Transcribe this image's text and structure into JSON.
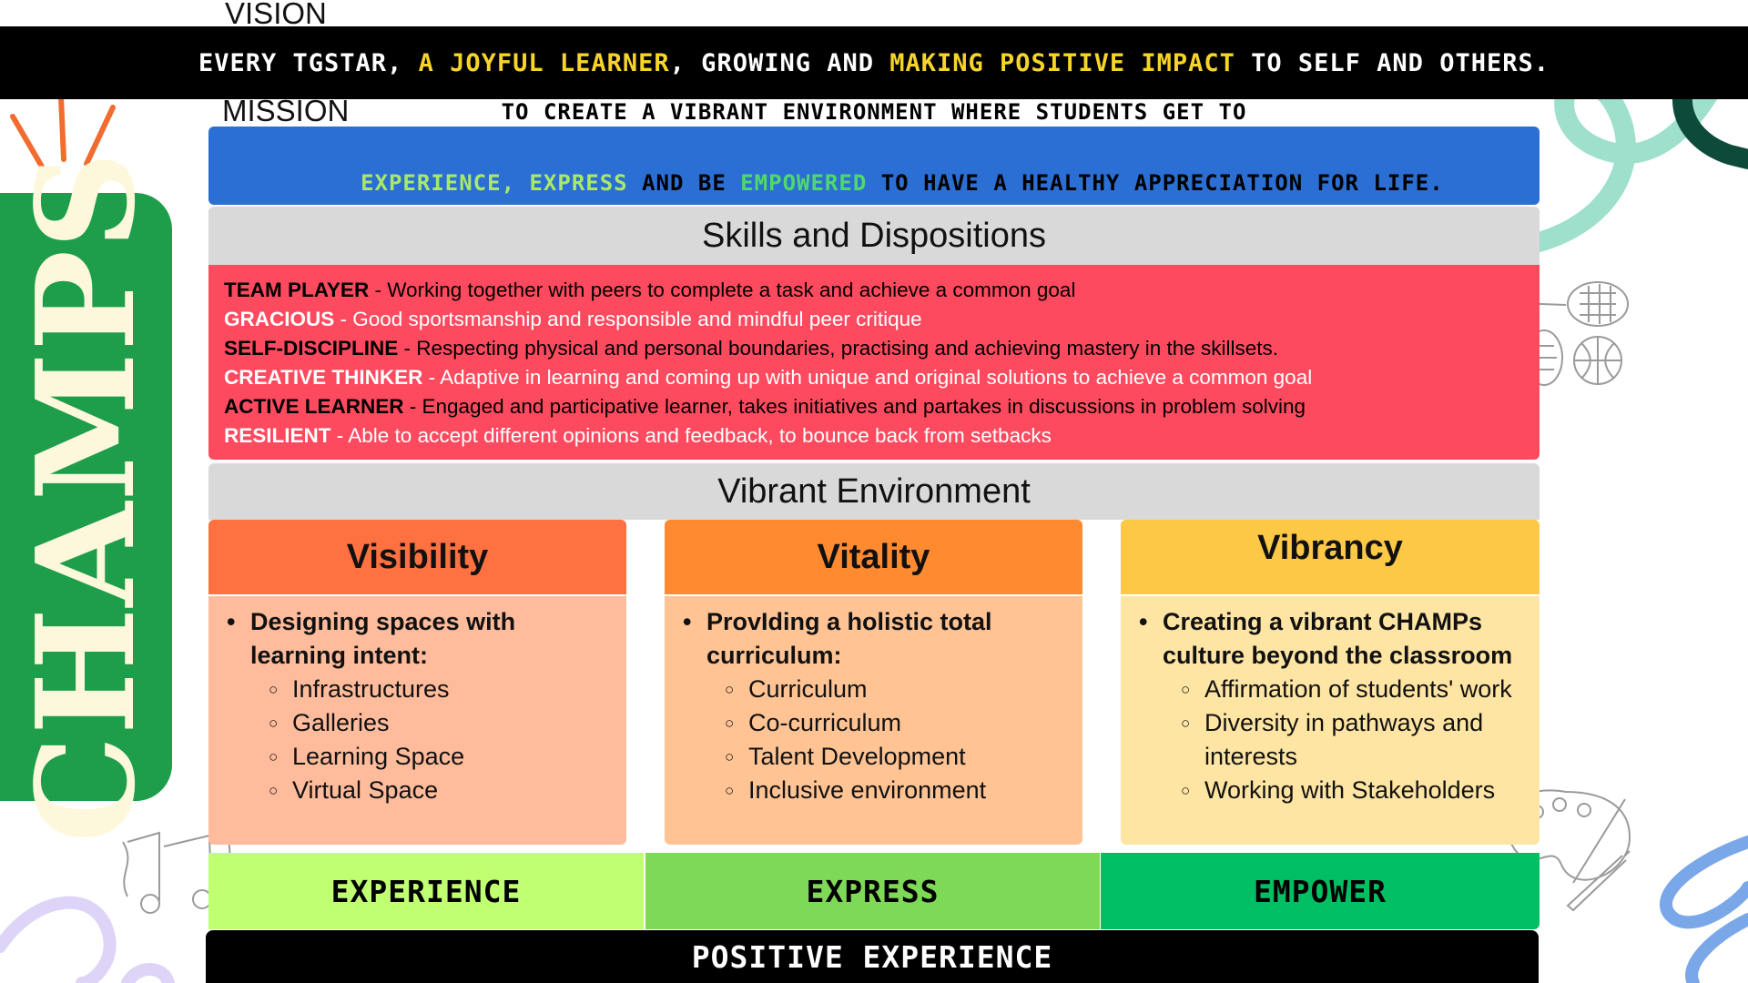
{
  "vision": {
    "label": "VISION",
    "parts": [
      "EVERY TGSTAR, ",
      "A JOYFUL LEARNER",
      ", GROWING AND ",
      "MAKING POSITIVE IMPACT",
      " TO SELF AND OTHERS."
    ]
  },
  "mission": {
    "label": "MISSION",
    "line1": "TO CREATE A VIBRANT ENVIRONMENT WHERE STUDENTS GET TO",
    "experience": "EXPERIENCE",
    "comma": ", ",
    "express": "EXPRESS",
    "and_be": " AND BE ",
    "empowered": "EMPOWERED",
    "rest": " TO HAVE A HEALTHY APPRECIATION FOR LIFE."
  },
  "skills": {
    "title": "Skills and Dispositions",
    "items": [
      {
        "name": "TEAM PLAYER",
        "desc": " - Working together with peers to complete a task and achieve a common goal"
      },
      {
        "name": "GRACIOUS",
        "desc": " - Good sportsmanship and responsible and mindful peer critique"
      },
      {
        "name": "SELF-DISCIPLINE",
        "desc": " - Respecting physical and personal boundaries, practising and achieving mastery in the skillsets."
      },
      {
        "name": "CREATIVE THINKER",
        "desc": " - Adaptive in learning and coming up with unique and original solutions to achieve a common goal"
      },
      {
        "name": "ACTIVE LEARNER",
        "desc": " - Engaged and participative learner, takes initiatives and partakes in discussions in problem solving"
      },
      {
        "name": "RESILIENT",
        "desc": " - Able to accept different opinions and feedback, to bounce back from setbacks"
      }
    ]
  },
  "environment": {
    "title": "Vibrant Environment",
    "columns": [
      {
        "title": "Visibility",
        "main": "Designing spaces with learning intent:",
        "subs": [
          "Infrastructures",
          "Galleries",
          "Learning Space",
          "Virtual Space"
        ]
      },
      {
        "title": "Vitality",
        "main": "ProvIding a holistic total curriculum:",
        "subs": [
          "Curriculum",
          "Co-curriculum",
          "Talent Development",
          "Inclusive environment"
        ]
      },
      {
        "title": "Vibrancy",
        "main": "Creating a vibrant CHAMPs culture beyond the classroom",
        "subs": [
          "Affirmation of students' work",
          "Diversity in pathways and interests",
          "Working with Stakeholders"
        ]
      }
    ]
  },
  "outcomes": [
    "EXPERIENCE",
    "EXPRESS",
    "EMPOWER"
  ],
  "positive_experience": "POSITIVE EXPERIENCE",
  "side_label": "CHAMPS",
  "colors": {
    "mission_blue": "#2b6fd4",
    "skills_red": "#fe4a5f",
    "visibility_head": "#ff7140",
    "visibility_body": "#ffbc9c",
    "vitality_head": "#ff8a30",
    "vitality_body": "#ffc394",
    "vibrancy_head": "#fcc845",
    "vibrancy_body": "#ffe5a3",
    "experience_green": "#c1ff72",
    "express_green": "#7ed957",
    "empower_green": "#00bf63",
    "champs_green": "#1e9e4b"
  }
}
